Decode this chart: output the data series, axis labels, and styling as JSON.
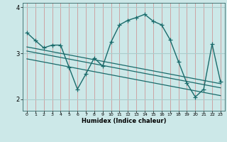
{
  "xlabel": "Humidex (Indice chaleur)",
  "bg_color": "#cce8e8",
  "line_color": "#1a6b6b",
  "grid_color_v": "#cc8888",
  "grid_color_h": "#aacccc",
  "xlim": [
    -0.5,
    23.5
  ],
  "ylim": [
    1.75,
    4.1
  ],
  "yticks": [
    2,
    3,
    4
  ],
  "xticks": [
    0,
    1,
    2,
    3,
    4,
    5,
    6,
    7,
    8,
    9,
    10,
    11,
    12,
    13,
    14,
    15,
    16,
    17,
    18,
    19,
    20,
    21,
    22,
    23
  ],
  "main_line_y": [
    3.45,
    3.28,
    3.12,
    3.18,
    3.18,
    2.7,
    2.22,
    2.55,
    2.9,
    2.72,
    3.25,
    3.62,
    3.72,
    3.78,
    3.85,
    3.7,
    3.62,
    3.3,
    2.82,
    2.35,
    2.05,
    2.22,
    3.2,
    2.38
  ],
  "trend1_y0": 3.14,
  "trend1_y1": 2.34,
  "trend2_y0": 3.05,
  "trend2_y1": 2.25,
  "trend3_y0": 2.88,
  "trend3_y1": 2.08,
  "marker_size": 4,
  "line_width": 1.0,
  "trend_lw": 0.9
}
